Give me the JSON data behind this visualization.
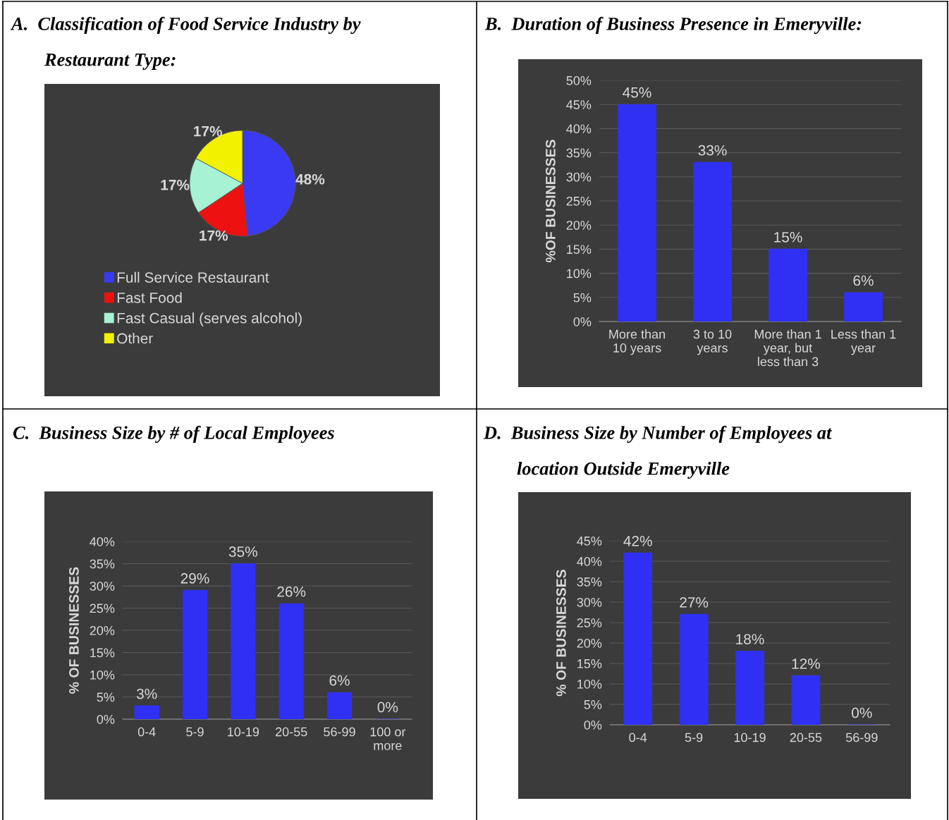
{
  "chart_data": [
    {
      "type": "pie",
      "title": "A.  Classification of Food Service Industry by Restaurant Type:",
      "categories": [
        "Full Service Restaurant",
        "Fast Food",
        "Fast Casual (serves alcohol)",
        "Other"
      ],
      "values": [
        48,
        17,
        17,
        17
      ],
      "colors": [
        "#3a3af2",
        "#ee1111",
        "#a6f2d2",
        "#f2f200"
      ],
      "value_labels": [
        "48%",
        "17%",
        "17%",
        "17%"
      ],
      "legend": "bottom"
    },
    {
      "type": "bar",
      "title": "B.  Duration of Business Presence in Emeryville:",
      "ylabel": "%OF BUSINESSES",
      "categories": [
        "More than 10 years",
        "3 to 10 years",
        "More than 1 year, but less than 3",
        "Less than 1 year"
      ],
      "values": [
        45,
        33,
        15,
        6
      ],
      "value_labels": [
        "45%",
        "33%",
        "15%",
        "6%"
      ],
      "color": "#3030f5",
      "ylim": [
        0,
        50
      ],
      "yticks": [
        {
          "value": 0,
          "label": "0%"
        },
        {
          "value": 5,
          "label": "5%"
        },
        {
          "value": 10,
          "label": "10%"
        },
        {
          "value": 15,
          "label": "15%"
        },
        {
          "value": 20,
          "label": "20%"
        },
        {
          "value": 25,
          "label": "25%"
        },
        {
          "value": 30,
          "label": "30%"
        },
        {
          "value": 35,
          "label": "35%"
        },
        {
          "value": 40,
          "label": "40%"
        },
        {
          "value": 45,
          "label": "45%"
        },
        {
          "value": 50,
          "label": "50%"
        }
      ],
      "grid": "y"
    },
    {
      "type": "bar",
      "title": "C.  Business Size by # of Local Employees",
      "ylabel": "% OF BUSINESSES",
      "categories": [
        "0-4",
        "5-9",
        "10-19",
        "20-55",
        "56-99",
        "100 or more"
      ],
      "values": [
        3,
        29,
        35,
        26,
        6,
        0
      ],
      "value_labels": [
        "3%",
        "29%",
        "35%",
        "26%",
        "6%",
        "0%"
      ],
      "color": "#3030f5",
      "ylim": [
        0,
        40
      ],
      "yticks": [
        {
          "value": 0,
          "label": "0%"
        },
        {
          "value": 5,
          "label": "5%"
        },
        {
          "value": 10,
          "label": "10%"
        },
        {
          "value": 15,
          "label": "15%"
        },
        {
          "value": 20,
          "label": "20%"
        },
        {
          "value": 25,
          "label": "25%"
        },
        {
          "value": 30,
          "label": "30%"
        },
        {
          "value": 35,
          "label": "35%"
        },
        {
          "value": 40,
          "label": "40%"
        }
      ],
      "grid": "y"
    },
    {
      "type": "bar",
      "title": "D.  Business Size by Number of Employees at location Outside Emeryville",
      "ylabel": "% OF BUSINESSES",
      "categories": [
        "0-4",
        "5-9",
        "10-19",
        "20-55",
        "56-99"
      ],
      "values": [
        42,
        27,
        18,
        12,
        0
      ],
      "value_labels": [
        "42%",
        "27%",
        "18%",
        "12%",
        "0%"
      ],
      "color": "#3030f5",
      "ylim": [
        0,
        45
      ],
      "yticks": [
        {
          "value": 0,
          "label": "0%"
        },
        {
          "value": 5,
          "label": "5%"
        },
        {
          "value": 10,
          "label": "10%"
        },
        {
          "value": 15,
          "label": "15%"
        },
        {
          "value": 20,
          "label": "20%"
        },
        {
          "value": 25,
          "label": "25%"
        },
        {
          "value": 30,
          "label": "30%"
        },
        {
          "value": 35,
          "label": "35%"
        },
        {
          "value": 40,
          "label": "40%"
        },
        {
          "value": 45,
          "label": "45%"
        }
      ],
      "grid": "y"
    }
  ]
}
